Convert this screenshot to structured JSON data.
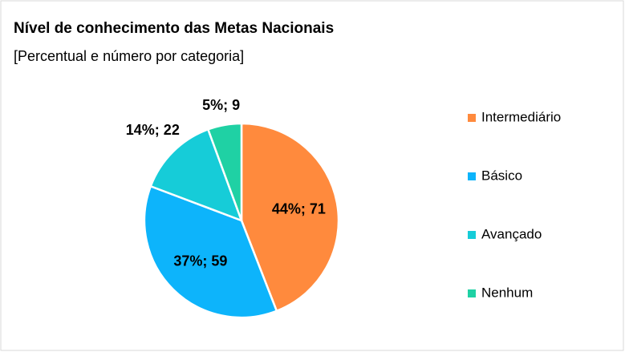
{
  "chart_data": {
    "type": "pie",
    "title": "Nível de conhecimento das Metas Nacionais",
    "subtitle": "[Percentual e número por categoria]",
    "categories": [
      "Intermediário",
      "Básico",
      "Avançado",
      "Nenhum"
    ],
    "values": [
      71,
      59,
      22,
      9
    ],
    "value_labels": [
      "44%; 71",
      "37%; 59",
      "14%; 22",
      "5%; 9"
    ],
    "colors": [
      "#ff8a3d",
      "#0db4fb",
      "#16ccd8",
      "#1fd1a4"
    ],
    "legend": "right"
  }
}
